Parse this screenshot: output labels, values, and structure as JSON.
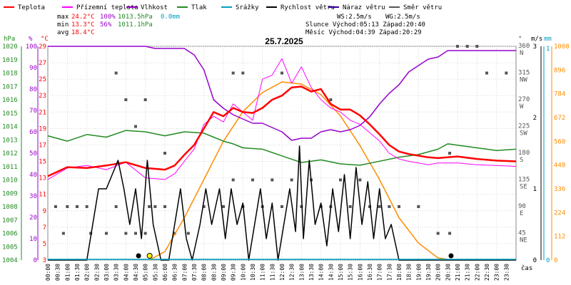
{
  "chart_data": {
    "type": "line",
    "title": "25.7.2025",
    "legend": [
      {
        "label": "Teplota",
        "color": "#ff0000"
      },
      {
        "label": "Přízemní teplota",
        "color": "#ff00ff"
      },
      {
        "label": "Vlhkost",
        "color": "#9900cc"
      },
      {
        "label": "Tlak",
        "color": "#228b22"
      },
      {
        "label": "Srážky",
        "color": "#00a0c0"
      },
      {
        "label": "Rychlost větru",
        "color": "#000000"
      },
      {
        "label": "Náraz větru",
        "color": "#330099"
      },
      {
        "label": "Směr větru",
        "color": "#555555"
      }
    ],
    "stats": {
      "max_label": "max",
      "max_temp": "24.2°C",
      "max_hum": "100%",
      "max_press": "1013.5hPa",
      "max_rain": "0.0mm",
      "min_label": "min",
      "min_temp": "13.3°C",
      "min_hum": "56%",
      "min_press": "1011.1hPa",
      "avg_label": "avg",
      "avg_temp": "18.4°C",
      "ws": "WS:2.5m/s",
      "wg": "WG:2.5m/s",
      "sun": "Slunce Východ:05:13  Západ:20:40",
      "moon": "Měsíc  Východ:04:39  Západ:20:29"
    },
    "axes": {
      "hpa_unit": "hPa",
      "pct_unit": "%",
      "c_unit": "°C",
      "deg_unit": "°",
      "ms_unit": "m/s",
      "mm_unit": "mm",
      "x_unit": "čas",
      "hpa_ticks": [
        "1020",
        "1019",
        "1018",
        "1017",
        "1016",
        "1015",
        "1014",
        "1013",
        "1012",
        "1011",
        "1010",
        "1009",
        "1008",
        "1007",
        "1006",
        "1005",
        "1004"
      ],
      "pct_ticks": [
        "100",
        "90",
        "80",
        "70",
        "60",
        "50",
        "40",
        "30",
        "20",
        "10",
        "0"
      ],
      "c_ticks": [
        "29",
        "27",
        "25",
        "23",
        "21",
        "19",
        "17",
        "15",
        "13",
        "11",
        "9",
        "7",
        "5",
        "3"
      ],
      "dir_ticks": [
        {
          "deg": "360",
          "dir": "N"
        },
        {
          "deg": "315",
          "dir": "NW"
        },
        {
          "deg": "270",
          "dir": "W"
        },
        {
          "deg": "225",
          "dir": "SW"
        },
        {
          "deg": "180",
          "dir": "S"
        },
        {
          "deg": "135",
          "dir": "SE"
        },
        {
          "deg": "90",
          "dir": "E"
        },
        {
          "deg": "45",
          "dir": "NE"
        }
      ],
      "ms_ticks": [
        "3",
        "2",
        "1",
        "0"
      ],
      "mm_ticks": [
        "1",
        "0"
      ],
      "wm2_ticks": [
        "1008",
        "896",
        "784",
        "672",
        "560",
        "448",
        "336",
        "224",
        "112",
        "0"
      ],
      "x_ticks": [
        "00:00",
        "00:30",
        "01:00",
        "01:30",
        "02:00",
        "02:30",
        "03:00",
        "03:30",
        "04:00",
        "04:30",
        "05:00",
        "05:30",
        "06:00",
        "06:30",
        "07:00",
        "07:30",
        "08:00",
        "08:30",
        "09:00",
        "09:30",
        "10:00",
        "10:30",
        "11:00",
        "11:30",
        "12:00",
        "12:30",
        "13:00",
        "13:30",
        "14:00",
        "14:30",
        "15:00",
        "15:30",
        "16:00",
        "16:30",
        "17:00",
        "17:30",
        "18:00",
        "18:30",
        "19:00",
        "19:30",
        "20:00",
        "20:30",
        "21:00",
        "21:30",
        "22:00",
        "22:30",
        "23:00",
        "23:30"
      ],
      "c_range": [
        3,
        29
      ],
      "pct_range": [
        0,
        100
      ],
      "hpa_range": [
        1004,
        1020
      ],
      "deg_range": [
        0,
        360
      ],
      "ms_range": [
        0,
        3
      ],
      "wm2_range": [
        0,
        1008
      ],
      "x_range": [
        0,
        24
      ]
    },
    "series": {
      "temperature": [
        [
          0,
          13.2
        ],
        [
          1,
          14.3
        ],
        [
          2,
          14.2
        ],
        [
          3,
          14.5
        ],
        [
          4,
          14.9
        ],
        [
          5,
          14.2
        ],
        [
          6,
          14.0
        ],
        [
          6.5,
          14.5
        ],
        [
          7,
          15.8
        ],
        [
          7.5,
          17.0
        ],
        [
          8,
          19.0
        ],
        [
          8.5,
          21.0
        ],
        [
          9,
          20.5
        ],
        [
          9.5,
          21.5
        ],
        [
          10,
          21.0
        ],
        [
          10.5,
          20.9
        ],
        [
          11,
          21.5
        ],
        [
          11.5,
          22.5
        ],
        [
          12,
          23.0
        ],
        [
          12.5,
          24.0
        ],
        [
          13,
          24.1
        ],
        [
          13.5,
          23.5
        ],
        [
          14,
          23.8
        ],
        [
          14.5,
          22.0
        ],
        [
          15,
          21.3
        ],
        [
          15.5,
          21.3
        ],
        [
          16,
          20.6
        ],
        [
          16.5,
          19.5
        ],
        [
          17,
          18.3
        ],
        [
          17.5,
          17.0
        ],
        [
          18,
          16.2
        ],
        [
          18.5,
          15.9
        ],
        [
          19,
          15.7
        ],
        [
          19.5,
          15.5
        ],
        [
          20,
          15.4
        ],
        [
          21,
          15.6
        ],
        [
          22,
          15.3
        ],
        [
          23,
          15.1
        ],
        [
          24,
          15.0
        ]
      ],
      "ground_temperature": [
        [
          0,
          12.8
        ],
        [
          1,
          14.2
        ],
        [
          2,
          14.5
        ],
        [
          3,
          14.0
        ],
        [
          4,
          14.9
        ],
        [
          5,
          13.0
        ],
        [
          6,
          12.8
        ],
        [
          6.5,
          13.5
        ],
        [
          7,
          15.0
        ],
        [
          7.5,
          16.5
        ],
        [
          8,
          19.5
        ],
        [
          8.5,
          20.5
        ],
        [
          9,
          19.8
        ],
        [
          9.5,
          22.0
        ],
        [
          10,
          21.0
        ],
        [
          10.5,
          20.0
        ],
        [
          11,
          25.0
        ],
        [
          11.5,
          25.5
        ],
        [
          12,
          27.5
        ],
        [
          12.5,
          24.5
        ],
        [
          13,
          26.5
        ],
        [
          13.5,
          24.0
        ],
        [
          14,
          22.5
        ],
        [
          14.5,
          21.5
        ],
        [
          15,
          21.0
        ],
        [
          15.5,
          20.0
        ],
        [
          16,
          19.5
        ],
        [
          16.5,
          18.5
        ],
        [
          17,
          17.5
        ],
        [
          17.5,
          16.0
        ],
        [
          18,
          15.3
        ],
        [
          18.5,
          15.0
        ],
        [
          19,
          14.8
        ],
        [
          19.5,
          14.6
        ],
        [
          20,
          14.8
        ],
        [
          21,
          14.8
        ],
        [
          22,
          14.6
        ],
        [
          23,
          14.5
        ],
        [
          24,
          14.4
        ]
      ],
      "humidity": [
        [
          0,
          100
        ],
        [
          5,
          100
        ],
        [
          5.5,
          99
        ],
        [
          7,
          99
        ],
        [
          7.5,
          96
        ],
        [
          8,
          89
        ],
        [
          8.5,
          75
        ],
        [
          9,
          71
        ],
        [
          9.5,
          68
        ],
        [
          10,
          66
        ],
        [
          10.5,
          64
        ],
        [
          11,
          64
        ],
        [
          11.5,
          62
        ],
        [
          12,
          60
        ],
        [
          12.5,
          56
        ],
        [
          13,
          57
        ],
        [
          13.5,
          57
        ],
        [
          14,
          60
        ],
        [
          14.5,
          61
        ],
        [
          15,
          60
        ],
        [
          15.5,
          61
        ],
        [
          16,
          63
        ],
        [
          16.5,
          67
        ],
        [
          17,
          73
        ],
        [
          17.5,
          78
        ],
        [
          18,
          82
        ],
        [
          18.5,
          88
        ],
        [
          19,
          91
        ],
        [
          19.5,
          94
        ],
        [
          20,
          95
        ],
        [
          20.5,
          98
        ],
        [
          24,
          98
        ]
      ],
      "pressure": [
        [
          0,
          1013.3
        ],
        [
          1,
          1012.9
        ],
        [
          2,
          1013.4
        ],
        [
          3,
          1013.2
        ],
        [
          4,
          1013.7
        ],
        [
          5,
          1013.6
        ],
        [
          6,
          1013.3
        ],
        [
          7,
          1013.6
        ],
        [
          8,
          1013.5
        ],
        [
          8.5,
          1013.2
        ],
        [
          9,
          1012.9
        ],
        [
          9.5,
          1012.7
        ],
        [
          10,
          1012.4
        ],
        [
          11,
          1012.3
        ],
        [
          12,
          1011.8
        ],
        [
          13,
          1011.3
        ],
        [
          14,
          1011.5
        ],
        [
          15,
          1011.2
        ],
        [
          16,
          1011.1
        ],
        [
          17,
          1011.4
        ],
        [
          18,
          1011.7
        ],
        [
          19,
          1011.9
        ],
        [
          20,
          1012.3
        ],
        [
          20.5,
          1012.7
        ],
        [
          21,
          1012.6
        ],
        [
          22,
          1012.4
        ],
        [
          23,
          1012.2
        ],
        [
          24,
          1012.3
        ]
      ],
      "wind_speed": [
        [
          0,
          0
        ],
        [
          2,
          0
        ],
        [
          2.3,
          0.5
        ],
        [
          2.6,
          1.0
        ],
        [
          3,
          1.0
        ],
        [
          3.3,
          1.2
        ],
        [
          3.6,
          1.4
        ],
        [
          3.9,
          1.0
        ],
        [
          4.2,
          0.5
        ],
        [
          4.5,
          1.0
        ],
        [
          4.8,
          0.3
        ],
        [
          5.1,
          1.4
        ],
        [
          5.4,
          0.5
        ],
        [
          5.8,
          0
        ],
        [
          6.2,
          0
        ],
        [
          6.5,
          0.5
        ],
        [
          6.8,
          1.0
        ],
        [
          7.1,
          0.3
        ],
        [
          7.4,
          0
        ],
        [
          7.8,
          0.5
        ],
        [
          8.1,
          1.0
        ],
        [
          8.4,
          0.5
        ],
        [
          8.8,
          1.0
        ],
        [
          9.1,
          0.3
        ],
        [
          9.4,
          1.0
        ],
        [
          9.7,
          0.5
        ],
        [
          10,
          0.8
        ],
        [
          10.3,
          0
        ],
        [
          10.6,
          0.5
        ],
        [
          10.9,
          1.0
        ],
        [
          11.2,
          0.3
        ],
        [
          11.5,
          0.8
        ],
        [
          11.8,
          0
        ],
        [
          12.1,
          0.5
        ],
        [
          12.4,
          1.0
        ],
        [
          12.7,
          0.4
        ],
        [
          12.9,
          1.6
        ],
        [
          13.1,
          0.3
        ],
        [
          13.4,
          1.4
        ],
        [
          13.7,
          0.5
        ],
        [
          14,
          0.8
        ],
        [
          14.3,
          0.2
        ],
        [
          14.6,
          1.0
        ],
        [
          14.9,
          0.4
        ],
        [
          15.2,
          1.2
        ],
        [
          15.5,
          0.3
        ],
        [
          15.8,
          1.3
        ],
        [
          16.1,
          0.5
        ],
        [
          16.4,
          1.1
        ],
        [
          16.7,
          0.3
        ],
        [
          17,
          1.0
        ],
        [
          17.3,
          0.3
        ],
        [
          17.6,
          0.5
        ],
        [
          18,
          0
        ],
        [
          18.5,
          0
        ],
        [
          24,
          0
        ]
      ],
      "wind_dir_dots": [
        [
          0.4,
          90
        ],
        [
          0.8,
          45
        ],
        [
          1.0,
          90
        ],
        [
          1.5,
          90
        ],
        [
          2.0,
          90
        ],
        [
          2.2,
          45
        ],
        [
          3.0,
          45
        ],
        [
          3.5,
          90
        ],
        [
          4.0,
          45
        ],
        [
          4.5,
          45
        ],
        [
          5.0,
          45
        ],
        [
          5.2,
          90
        ],
        [
          5.5,
          90
        ],
        [
          6.0,
          90
        ],
        [
          6.5,
          45
        ],
        [
          7.2,
          45
        ],
        [
          8.0,
          90
        ],
        [
          9.0,
          90
        ],
        [
          9.5,
          135
        ],
        [
          10.0,
          90
        ],
        [
          10.5,
          135
        ],
        [
          11.0,
          90
        ],
        [
          11.5,
          135
        ],
        [
          12.0,
          90
        ],
        [
          12.5,
          135
        ],
        [
          13.0,
          90
        ],
        [
          13.5,
          135
        ],
        [
          14.0,
          90
        ],
        [
          14.5,
          90
        ],
        [
          15.0,
          135
        ],
        [
          15.5,
          90
        ],
        [
          16.0,
          135
        ],
        [
          16.5,
          90
        ],
        [
          17.0,
          90
        ],
        [
          17.5,
          90
        ],
        [
          18.0,
          90
        ],
        [
          19.0,
          90
        ],
        [
          20.0,
          45
        ],
        [
          20.6,
          45
        ],
        [
          3.5,
          315
        ],
        [
          4.0,
          270
        ],
        [
          4.5,
          225
        ],
        [
          5.0,
          270
        ],
        [
          6.0,
          180
        ],
        [
          9.5,
          315
        ],
        [
          10.0,
          315
        ],
        [
          12.0,
          315
        ],
        [
          14.5,
          270
        ],
        [
          20.6,
          180
        ],
        [
          21.0,
          360
        ],
        [
          21.5,
          360
        ],
        [
          22.0,
          360
        ],
        [
          22.5,
          315
        ],
        [
          23.5,
          315
        ]
      ],
      "solar": [
        [
          5.2,
          0
        ],
        [
          6,
          40
        ],
        [
          7,
          200
        ],
        [
          8,
          380
        ],
        [
          9,
          560
        ],
        [
          10,
          700
        ],
        [
          11,
          790
        ],
        [
          12,
          840
        ],
        [
          13,
          830
        ],
        [
          14,
          780
        ],
        [
          15,
          680
        ],
        [
          16,
          540
        ],
        [
          17,
          380
        ],
        [
          18,
          200
        ],
        [
          19,
          80
        ],
        [
          20,
          10
        ],
        [
          20.7,
          0
        ]
      ]
    }
  }
}
